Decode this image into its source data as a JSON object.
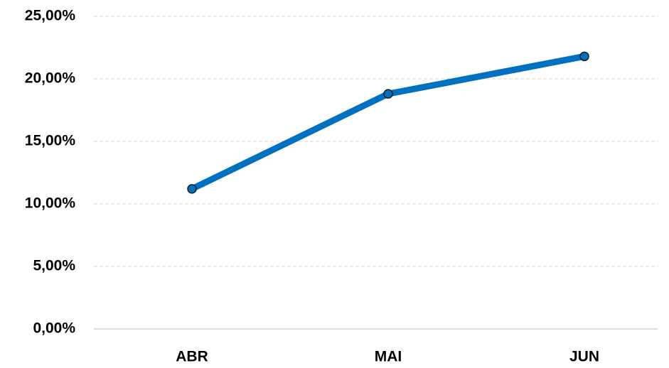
{
  "chart_data": {
    "type": "line",
    "categories": [
      "ABR",
      "MAI",
      "JUN"
    ],
    "series": [
      {
        "color": "#0070c0",
        "values": [
          11.2,
          18.8,
          21.8
        ]
      }
    ],
    "ylim": [
      0,
      25
    ],
    "yticks": [
      {
        "value": 0,
        "label": "0,00%"
      },
      {
        "value": 5,
        "label": "5,00%"
      },
      {
        "value": 10,
        "label": "10,00%"
      },
      {
        "value": 15,
        "label": "15,00%"
      },
      {
        "value": 20,
        "label": "20,00%"
      },
      {
        "value": 25,
        "label": "25,00%"
      }
    ],
    "grid": true
  }
}
